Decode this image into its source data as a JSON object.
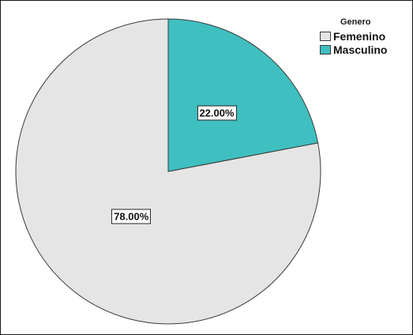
{
  "chart_data": {
    "type": "pie",
    "title": "",
    "legend_title": "Genero",
    "legend_position": "top-right",
    "categories": [
      "Femenino",
      "Masculino"
    ],
    "values": [
      78.0,
      22.0
    ],
    "data_labels": [
      "78.00%",
      "22.00%"
    ],
    "colors": [
      "#e5e5e5",
      "#3fbfbf"
    ],
    "outline_color": "#3a3a3a"
  }
}
